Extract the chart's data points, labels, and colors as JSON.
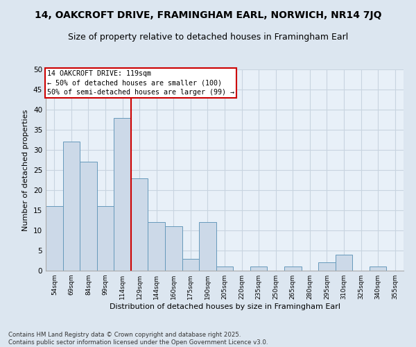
{
  "title": "14, OAKCROFT DRIVE, FRAMINGHAM EARL, NORWICH, NR14 7JQ",
  "subtitle": "Size of property relative to detached houses in Framingham Earl",
  "xlabel": "Distribution of detached houses by size in Framingham Earl",
  "ylabel": "Number of detached properties",
  "categories": [
    "54sqm",
    "69sqm",
    "84sqm",
    "99sqm",
    "114sqm",
    "129sqm",
    "144sqm",
    "160sqm",
    "175sqm",
    "190sqm",
    "205sqm",
    "220sqm",
    "235sqm",
    "250sqm",
    "265sqm",
    "280sqm",
    "295sqm",
    "310sqm",
    "325sqm",
    "340sqm",
    "355sqm"
  ],
  "values": [
    16,
    32,
    27,
    16,
    38,
    23,
    12,
    11,
    3,
    12,
    1,
    0,
    1,
    0,
    1,
    0,
    2,
    4,
    0,
    1,
    0
  ],
  "bar_color": "#ccd9e8",
  "bar_edge_color": "#6699bb",
  "bg_color": "#dce6f0",
  "plot_bg_color": "#e8f0f8",
  "grid_color": "#c8d4e0",
  "vline_x": 4.5,
  "vline_color": "#cc0000",
  "annotation_text": "14 OAKCROFT DRIVE: 119sqm\n← 50% of detached houses are smaller (100)\n50% of semi-detached houses are larger (99) →",
  "annotation_box_color": "white",
  "annotation_box_edge": "#cc0000",
  "footnote": "Contains HM Land Registry data © Crown copyright and database right 2025.\nContains public sector information licensed under the Open Government Licence v3.0.",
  "ylim": [
    0,
    50
  ],
  "yticks": [
    0,
    5,
    10,
    15,
    20,
    25,
    30,
    35,
    40,
    45,
    50
  ],
  "title_fontsize": 10,
  "subtitle_fontsize": 9
}
